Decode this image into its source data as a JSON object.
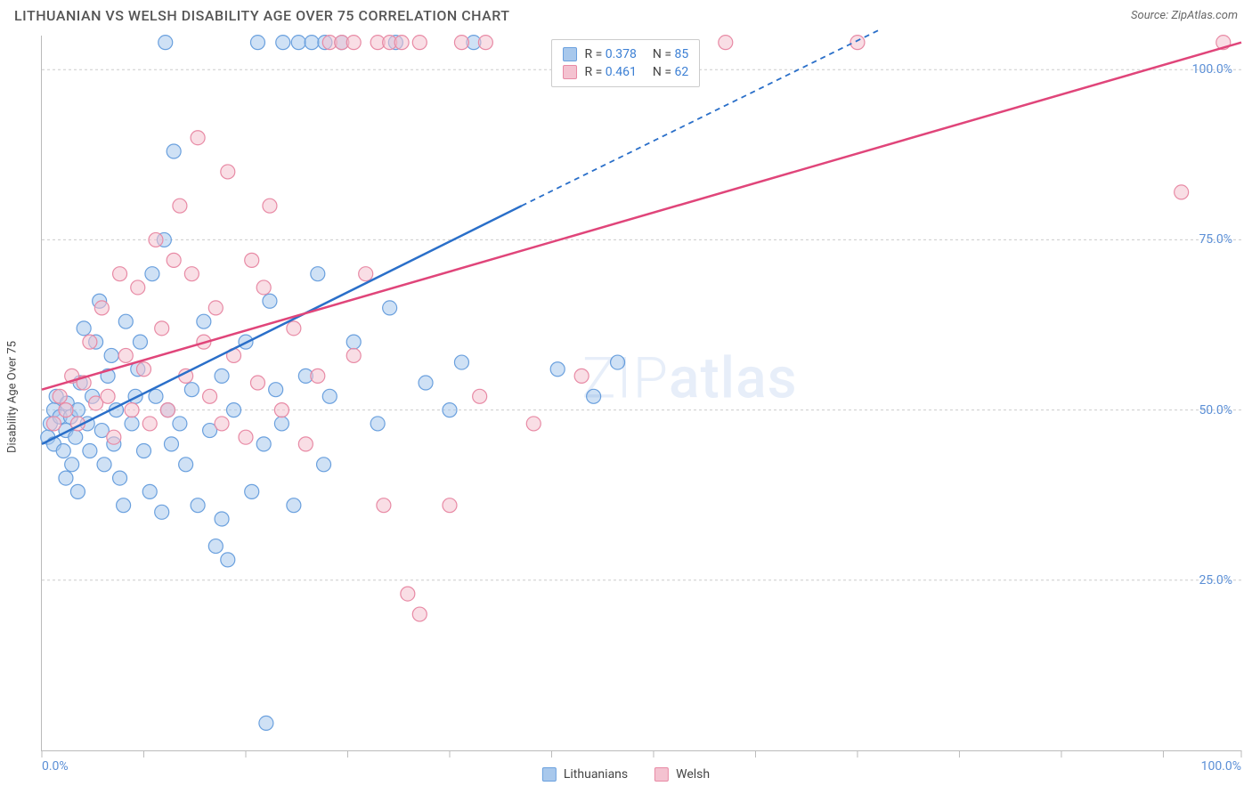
{
  "header": {
    "title": "LITHUANIAN VS WELSH DISABILITY AGE OVER 75 CORRELATION CHART",
    "source_prefix": "Source: ",
    "source_name": "ZipAtlas.com"
  },
  "chart": {
    "type": "scatter",
    "ylabel": "Disability Age Over 75",
    "xlim": [
      0,
      100
    ],
    "ylim": [
      0,
      105
    ],
    "xtick_positions": [
      0,
      8.5,
      17,
      25.5,
      34,
      42.5,
      51,
      59.5,
      68,
      76.5,
      85,
      93.5,
      100
    ],
    "xtick_labels": {
      "0": "0.0%",
      "100": "100.0%"
    },
    "ytick_positions": [
      25,
      50,
      75,
      100
    ],
    "ytick_labels": [
      "25.0%",
      "50.0%",
      "75.0%",
      "100.0%"
    ],
    "background_color": "#ffffff",
    "grid_color": "#cccccc",
    "axis_color": "#bbbbbb",
    "tick_label_color": "#5b8fd6",
    "marker_radius": 8,
    "marker_opacity": 0.55,
    "series": [
      {
        "name": "Lithuanians",
        "fill_color": "#a8c8ec",
        "stroke_color": "#6aa0de",
        "line_color": "#2a6fc9",
        "r_value": "0.378",
        "n_value": "85",
        "trend": {
          "x1": 0,
          "y1": 45,
          "x2_solid": 40,
          "y2_solid": 80,
          "x2_dash": 70,
          "y2_dash": 106
        },
        "points": [
          [
            0.5,
            46
          ],
          [
            0.7,
            48
          ],
          [
            1.0,
            50
          ],
          [
            1.2,
            52
          ],
          [
            1.0,
            45
          ],
          [
            1.5,
            49
          ],
          [
            1.8,
            44
          ],
          [
            2.0,
            47
          ],
          [
            2.1,
            51
          ],
          [
            2.4,
            49
          ],
          [
            2.0,
            40
          ],
          [
            2.5,
            42
          ],
          [
            2.8,
            46
          ],
          [
            3.0,
            50
          ],
          [
            3.2,
            54
          ],
          [
            3.5,
            62
          ],
          [
            3.0,
            38
          ],
          [
            3.8,
            48
          ],
          [
            4.0,
            44
          ],
          [
            4.2,
            52
          ],
          [
            4.5,
            60
          ],
          [
            4.8,
            66
          ],
          [
            5.0,
            47
          ],
          [
            5.2,
            42
          ],
          [
            5.5,
            55
          ],
          [
            5.8,
            58
          ],
          [
            6.0,
            45
          ],
          [
            6.2,
            50
          ],
          [
            6.5,
            40
          ],
          [
            6.8,
            36
          ],
          [
            7.0,
            63
          ],
          [
            7.5,
            48
          ],
          [
            7.8,
            52
          ],
          [
            8.0,
            56
          ],
          [
            8.2,
            60
          ],
          [
            8.5,
            44
          ],
          [
            9.0,
            38
          ],
          [
            9.2,
            70
          ],
          [
            9.5,
            52
          ],
          [
            10.0,
            35
          ],
          [
            10.2,
            75
          ],
          [
            10.5,
            50
          ],
          [
            10.8,
            45
          ],
          [
            11.0,
            88
          ],
          [
            11.5,
            48
          ],
          [
            12.0,
            42
          ],
          [
            12.5,
            53
          ],
          [
            13.0,
            36
          ],
          [
            13.5,
            63
          ],
          [
            10.3,
            104
          ],
          [
            14.0,
            47
          ],
          [
            14.5,
            30
          ],
          [
            15.0,
            34
          ],
          [
            15.0,
            55
          ],
          [
            15.5,
            28
          ],
          [
            16.0,
            50
          ],
          [
            17.0,
            60
          ],
          [
            17.5,
            38
          ],
          [
            18.0,
            104
          ],
          [
            18.5,
            45
          ],
          [
            19.0,
            66
          ],
          [
            19.5,
            53
          ],
          [
            20.0,
            48
          ],
          [
            20.1,
            104
          ],
          [
            21.0,
            36
          ],
          [
            21.4,
            104
          ],
          [
            22.0,
            55
          ],
          [
            22.5,
            104
          ],
          [
            23.0,
            70
          ],
          [
            23.5,
            42
          ],
          [
            24.0,
            52
          ],
          [
            25.0,
            104
          ],
          [
            26.0,
            60
          ],
          [
            18.7,
            4
          ],
          [
            28.0,
            48
          ],
          [
            29.0,
            65
          ],
          [
            23.6,
            104
          ],
          [
            32.0,
            54
          ],
          [
            34.0,
            50
          ],
          [
            35.0,
            57
          ],
          [
            36.0,
            104
          ],
          [
            43.0,
            56
          ],
          [
            46.0,
            52
          ],
          [
            29.5,
            104
          ],
          [
            48.0,
            57
          ]
        ]
      },
      {
        "name": "Welsh",
        "fill_color": "#f4c2d0",
        "stroke_color": "#e88aa5",
        "line_color": "#e0457a",
        "r_value": "0.461",
        "n_value": "62",
        "trend": {
          "x1": 0,
          "y1": 53,
          "x2_solid": 100,
          "y2_solid": 104,
          "x2_dash": 100,
          "y2_dash": 104
        },
        "points": [
          [
            1.0,
            48
          ],
          [
            1.5,
            52
          ],
          [
            2.0,
            50
          ],
          [
            2.5,
            55
          ],
          [
            3.0,
            48
          ],
          [
            3.5,
            54
          ],
          [
            4.0,
            60
          ],
          [
            4.5,
            51
          ],
          [
            5.0,
            65
          ],
          [
            5.5,
            52
          ],
          [
            6.0,
            46
          ],
          [
            6.5,
            70
          ],
          [
            7.0,
            58
          ],
          [
            7.5,
            50
          ],
          [
            8.0,
            68
          ],
          [
            8.5,
            56
          ],
          [
            9.0,
            48
          ],
          [
            9.5,
            75
          ],
          [
            10.0,
            62
          ],
          [
            10.5,
            50
          ],
          [
            11.0,
            72
          ],
          [
            11.5,
            80
          ],
          [
            12.0,
            55
          ],
          [
            12.5,
            70
          ],
          [
            13.0,
            90
          ],
          [
            13.5,
            60
          ],
          [
            14.0,
            52
          ],
          [
            14.5,
            65
          ],
          [
            15.0,
            48
          ],
          [
            15.5,
            85
          ],
          [
            16.0,
            58
          ],
          [
            17.0,
            46
          ],
          [
            17.5,
            72
          ],
          [
            18.0,
            54
          ],
          [
            18.5,
            68
          ],
          [
            19.0,
            80
          ],
          [
            20.0,
            50
          ],
          [
            21.0,
            62
          ],
          [
            22.0,
            45
          ],
          [
            23.0,
            55
          ],
          [
            24.0,
            104
          ],
          [
            25.0,
            104
          ],
          [
            26.0,
            58
          ],
          [
            26.0,
            104
          ],
          [
            27.0,
            70
          ],
          [
            28.5,
            36
          ],
          [
            28.0,
            104
          ],
          [
            29.0,
            104
          ],
          [
            30.5,
            23
          ],
          [
            30.0,
            104
          ],
          [
            31.5,
            20
          ],
          [
            34.0,
            36
          ],
          [
            35.0,
            104
          ],
          [
            36.5,
            52
          ],
          [
            37.0,
            104
          ],
          [
            41.0,
            48
          ],
          [
            31.5,
            104
          ],
          [
            45.0,
            55
          ],
          [
            57.0,
            104
          ],
          [
            68.0,
            104
          ],
          [
            95.0,
            82
          ],
          [
            98.5,
            104
          ]
        ]
      }
    ],
    "legend_box": {
      "left_pct": 42.5,
      "top_pct": 0.5
    },
    "watermark": {
      "thin": "ZIP",
      "bold": "atlas"
    },
    "bottom_legend": [
      {
        "label": "Lithuanians",
        "fill": "#a8c8ec",
        "stroke": "#6aa0de"
      },
      {
        "label": "Welsh",
        "fill": "#f4c2d0",
        "stroke": "#e88aa5"
      }
    ]
  }
}
